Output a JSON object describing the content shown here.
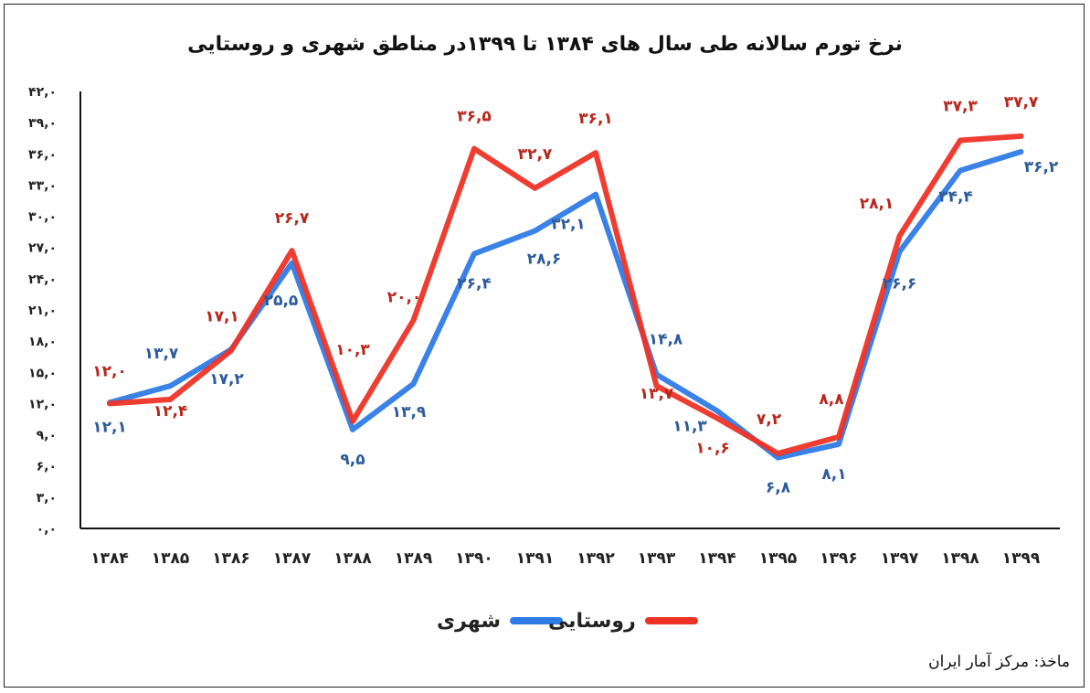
{
  "chart_data": {
    "type": "line",
    "title": "نرخ تورم سالانه طی سال های ۱۳۸۴ تا ۱۳۹۹در مناطق شهری و روستایی",
    "xlabel": "",
    "ylabel": "",
    "ylim": [
      0,
      42
    ],
    "yticks": [
      "۰,۰",
      "۳,۰",
      "۶,۰",
      "۹,۰",
      "۱۲,۰",
      "۱۵,۰",
      "۱۸,۰",
      "۲۱,۰",
      "۲۴,۰",
      "۲۷,۰",
      "۳۰,۰",
      "۳۳,۰",
      "۳۶,۰",
      "۳۹,۰",
      "۴۲,۰"
    ],
    "categories": [
      "۱۳۸۴",
      "۱۳۸۵",
      "۱۳۸۶",
      "۱۳۸۷",
      "۱۳۸۸",
      "۱۳۸۹",
      "۱۳۹۰",
      "۱۳۹۱",
      "۱۳۹۲",
      "۱۳۹۳",
      "۱۳۹۴",
      "۱۳۹۵",
      "۱۳۹۶",
      "۱۳۹۷",
      "۱۳۹۸",
      "۱۳۹۹"
    ],
    "legend_position": "bottom",
    "grid": false,
    "series": [
      {
        "name": "شهری",
        "color": "#2f7be6",
        "values": [
          12.1,
          13.7,
          17.2,
          25.5,
          9.5,
          13.9,
          26.4,
          28.6,
          32.1,
          14.8,
          11.3,
          6.8,
          8.1,
          26.6,
          34.4,
          36.2
        ],
        "labels": [
          "۱۲,۱",
          "۱۳,۷",
          "۱۷,۲",
          "۲۵,۵",
          "۹,۵",
          "۱۳,۹",
          "۲۶,۴",
          "۲۸,۶",
          "۳۲,۱",
          "۱۴,۸",
          "۱۱,۳",
          "۶,۸",
          "۸,۱",
          "۲۶,۶",
          "۳۴,۴",
          "۳۶,۲"
        ]
      },
      {
        "name": "روستایی",
        "color": "#ee3326",
        "values": [
          12.0,
          12.4,
          17.1,
          26.7,
          10.3,
          20.0,
          36.5,
          32.7,
          36.1,
          13.7,
          10.6,
          7.2,
          8.8,
          28.1,
          37.3,
          37.7
        ],
        "labels": [
          "۱۲,۰",
          "۱۲,۴",
          "۱۷,۱",
          "۲۶,۷",
          "۱۰,۳",
          "۲۰,۰",
          "۳۶,۵",
          "۳۲,۷",
          "۳۶,۱",
          "۱۳,۷",
          "۱۰,۶",
          "۷,۲",
          "۸,۸",
          "۲۸,۱",
          "۳۷,۳",
          "۳۷,۷"
        ]
      }
    ]
  },
  "source": "ماخذ: مرکز آمار ایران"
}
